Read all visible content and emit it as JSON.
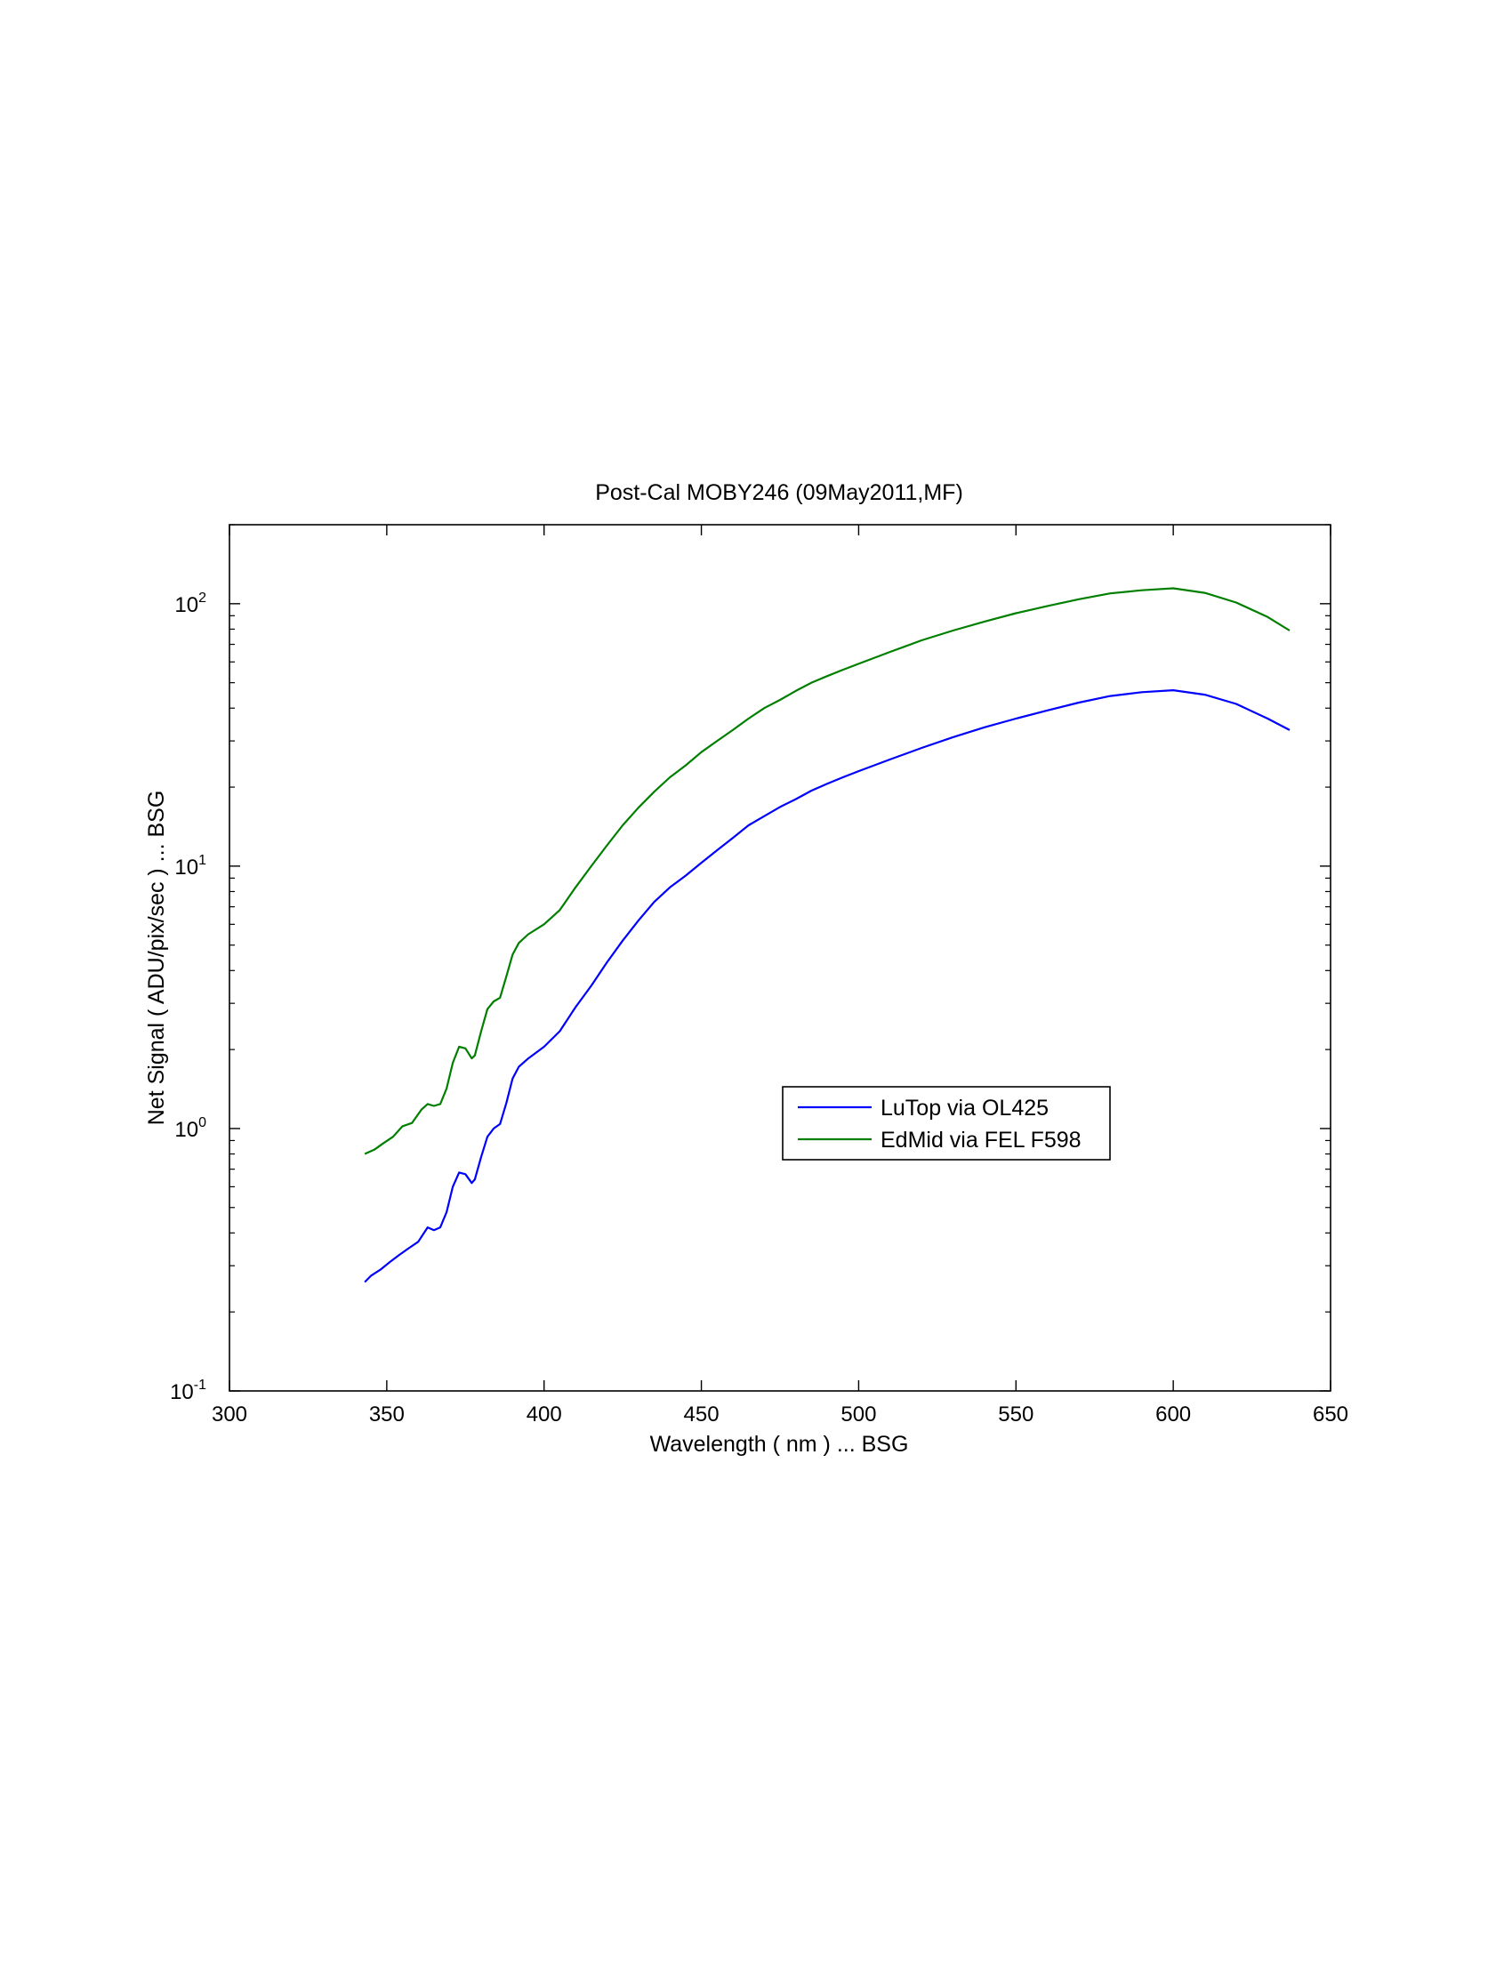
{
  "chart_data": {
    "type": "line",
    "title": "Post-Cal MOBY246  (09May2011,MF)",
    "xlabel": "Wavelength  ( nm )  ...  BSG",
    "ylabel": "Net Signal  ( ADU/pix/sec )  ...  BSG",
    "xlim": [
      300,
      650
    ],
    "ylim": [
      0.1,
      200
    ],
    "yscale": "log",
    "grid": false,
    "legend_position": "center-right",
    "x_ticks": [
      300,
      350,
      400,
      450,
      500,
      550,
      600,
      650
    ],
    "x_tick_labels": [
      "300",
      "350",
      "400",
      "450",
      "500",
      "550",
      "600",
      "650"
    ],
    "y_ticks": [
      {
        "value": 0.1,
        "base": "10",
        "exp": "-1"
      },
      {
        "value": 1,
        "base": "10",
        "exp": "0"
      },
      {
        "value": 10,
        "base": "10",
        "exp": "1"
      },
      {
        "value": 100,
        "base": "10",
        "exp": "2"
      }
    ],
    "series": [
      {
        "name": "LuTop via OL425",
        "color": "#0000ff",
        "points": [
          [
            343,
            0.26
          ],
          [
            345,
            0.275
          ],
          [
            348,
            0.29
          ],
          [
            351,
            0.31
          ],
          [
            354,
            0.33
          ],
          [
            357,
            0.35
          ],
          [
            360,
            0.37
          ],
          [
            363,
            0.42
          ],
          [
            365,
            0.41
          ],
          [
            367,
            0.42
          ],
          [
            369,
            0.48
          ],
          [
            371,
            0.6
          ],
          [
            373,
            0.68
          ],
          [
            375,
            0.67
          ],
          [
            377,
            0.62
          ],
          [
            378,
            0.64
          ],
          [
            380,
            0.78
          ],
          [
            382,
            0.93
          ],
          [
            384,
            1.0
          ],
          [
            386,
            1.04
          ],
          [
            388,
            1.25
          ],
          [
            390,
            1.55
          ],
          [
            392,
            1.72
          ],
          [
            395,
            1.85
          ],
          [
            400,
            2.05
          ],
          [
            405,
            2.35
          ],
          [
            410,
            2.9
          ],
          [
            415,
            3.5
          ],
          [
            420,
            4.3
          ],
          [
            425,
            5.2
          ],
          [
            430,
            6.2
          ],
          [
            435,
            7.3
          ],
          [
            440,
            8.3
          ],
          [
            445,
            9.2
          ],
          [
            450,
            10.3
          ],
          [
            455,
            11.5
          ],
          [
            460,
            12.8
          ],
          [
            465,
            14.3
          ],
          [
            470,
            15.5
          ],
          [
            475,
            16.8
          ],
          [
            480,
            18.0
          ],
          [
            485,
            19.4
          ],
          [
            490,
            20.6
          ],
          [
            495,
            21.8
          ],
          [
            500,
            23.0
          ],
          [
            510,
            25.5
          ],
          [
            520,
            28.2
          ],
          [
            530,
            31.0
          ],
          [
            540,
            33.8
          ],
          [
            550,
            36.5
          ],
          [
            560,
            39.2
          ],
          [
            570,
            42.0
          ],
          [
            580,
            44.5
          ],
          [
            590,
            46.0
          ],
          [
            600,
            46.8
          ],
          [
            610,
            45.0
          ],
          [
            620,
            41.5
          ],
          [
            630,
            36.5
          ],
          [
            637,
            33.0
          ]
        ]
      },
      {
        "name": "EdMid via FEL F598",
        "color": "#007f00",
        "points": [
          [
            343,
            0.8
          ],
          [
            346,
            0.83
          ],
          [
            349,
            0.88
          ],
          [
            352,
            0.93
          ],
          [
            355,
            1.02
          ],
          [
            358,
            1.05
          ],
          [
            361,
            1.18
          ],
          [
            363,
            1.24
          ],
          [
            365,
            1.22
          ],
          [
            367,
            1.24
          ],
          [
            369,
            1.42
          ],
          [
            371,
            1.78
          ],
          [
            373,
            2.05
          ],
          [
            375,
            2.02
          ],
          [
            377,
            1.85
          ],
          [
            378,
            1.9
          ],
          [
            380,
            2.35
          ],
          [
            382,
            2.85
          ],
          [
            384,
            3.05
          ],
          [
            386,
            3.15
          ],
          [
            388,
            3.8
          ],
          [
            390,
            4.6
          ],
          [
            392,
            5.1
          ],
          [
            395,
            5.5
          ],
          [
            400,
            6.0
          ],
          [
            405,
            6.8
          ],
          [
            410,
            8.3
          ],
          [
            415,
            10.0
          ],
          [
            420,
            12.0
          ],
          [
            425,
            14.3
          ],
          [
            430,
            16.7
          ],
          [
            435,
            19.2
          ],
          [
            440,
            21.8
          ],
          [
            445,
            24.2
          ],
          [
            450,
            27.2
          ],
          [
            455,
            30.0
          ],
          [
            460,
            33.0
          ],
          [
            465,
            36.5
          ],
          [
            470,
            40.0
          ],
          [
            475,
            43.0
          ],
          [
            480,
            46.5
          ],
          [
            485,
            50.0
          ],
          [
            490,
            53.0
          ],
          [
            495,
            56.0
          ],
          [
            500,
            59.0
          ],
          [
            510,
            65.5
          ],
          [
            520,
            72.5
          ],
          [
            530,
            79.0
          ],
          [
            540,
            85.5
          ],
          [
            550,
            92.0
          ],
          [
            560,
            98.0
          ],
          [
            570,
            104.0
          ],
          [
            580,
            109.5
          ],
          [
            590,
            112.5
          ],
          [
            600,
            114.5
          ],
          [
            610,
            110.0
          ],
          [
            620,
            101.0
          ],
          [
            630,
            89.0
          ],
          [
            637,
            79.0
          ]
        ]
      }
    ]
  }
}
